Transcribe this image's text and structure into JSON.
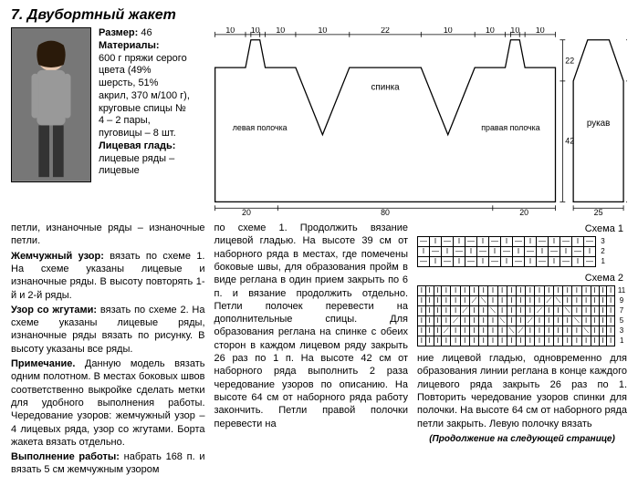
{
  "title": "7. Двубортный жакет",
  "materials": {
    "size_label": "Размер:",
    "size_val": "46",
    "mat_label": "Материалы:",
    "mat_text": "600 г пряжи серого цвета (49% шерсть, 51% акрил, 370 м/100 г), круговые спицы № 4 – 2 пары, пуговицы – 8 шт.",
    "lits_label": "Лицевая гладь:",
    "lits_text": "лицевые ряды – лицевые"
  },
  "diagram": {
    "top_dims": [
      "10",
      "2",
      "10",
      "2",
      "10",
      "22",
      "10",
      "2",
      "10"
    ],
    "back_label": "спинка",
    "left_label": "левая полочка",
    "right_label": "правая полочка",
    "sleeve_label": "рукав",
    "h1": "22",
    "h2": "42",
    "bottom_left": "20",
    "bottom_mid": "80",
    "bottom_right": "20",
    "sleeve_h1": "22",
    "sleeve_h2": "50",
    "sleeve_w": "25"
  },
  "col1": {
    "p1": "петли, изнаночные ряды – изнаночные петли.",
    "p2b": "Жемчужный узор:",
    "p2": " вязать по схеме 1. На схеме указаны лицевые и изнаночные ряды. В высоту повторять 1-й и 2-й ряды.",
    "p3b": "Узор со жгутами:",
    "p3": " вязать по схеме 2. На схеме указаны лицевые ряды, изнаночные ряды вязать по рисунку. В высоту указаны все ряды.",
    "p4b": "Примечание.",
    "p4": " Данную модель вязать одним полотном. В местах боковых швов соответственно выкройке сделать метки для удобного выполнения работы. Чередование узоров: жемчужный узор – 4 лицевых ряда, узор со жгутами. Борта жакета вязать отдельно.",
    "p5b": "Выполнение работы:",
    "p5": " набрать 168 п. и вязать 5 см жемчужным узором"
  },
  "col2": {
    "p1": "по схеме 1. Продолжить вязание лицевой гладью. На высоте 39 см от наборного ряда в местах, где помечены боковые швы, для образования прой­м в виде реглана в один прием закрыть по 6 п. и вязание продолжить отдельно. Петли полочек перевести на дополнительные спицы. Для образования реглана на спинке с обеих сторон в каждом лицевом ряду закрыть 26 раз по 1 п. На высоте 42 см от наборного ряда выполнить 2 раза чередование узоров по описанию. На высоте 64 см от наборного ряда работу закончить. Петли правой полочки перевести на"
  },
  "col3": {
    "p1": "ние лицевой гладью, одновременно для образования линии реглана в конце каждого лицевого ряда закрыть 26 раз по 1. Повторить чередование узоров спинки для полочки. На высоте 64 см от наборного ряда петли закрыть. Левую полочку вязать"
  },
  "schema1_label": "Схема 1",
  "schema2_label": "Схема 2",
  "schema1": {
    "rows": [
      {
        "n": "3",
        "cells": [
          "—",
          "I",
          "—",
          "I",
          "—",
          "I",
          "—",
          "I",
          "—",
          "I",
          "—",
          "I",
          "—",
          "I",
          "—"
        ]
      },
      {
        "n": "2",
        "cells": [
          "I",
          "—",
          "I",
          "—",
          "I",
          "—",
          "I",
          "—",
          "I",
          "—",
          "I",
          "—",
          "I",
          "—",
          "I"
        ]
      },
      {
        "n": "1",
        "cells": [
          "—",
          "I",
          "—",
          "I",
          "—",
          "I",
          "—",
          "I",
          "—",
          "I",
          "—",
          "I",
          "—",
          "I",
          "—"
        ]
      }
    ]
  },
  "schema2": {
    "rows": [
      {
        "n": "11",
        "cells": [
          "I",
          "I",
          "I",
          "I",
          "I",
          "I",
          "I",
          "I",
          "I",
          "I",
          "I",
          "I",
          "I",
          "I",
          "I",
          "I",
          "I",
          "I",
          "I",
          "I",
          "I",
          "I"
        ]
      },
      {
        "n": "9",
        "cells": [
          "I",
          "I",
          "I",
          "I",
          "I",
          "I",
          "⟋",
          "⟍",
          "I",
          "I",
          "I",
          "I",
          "I",
          "I",
          "⟋",
          "⟍",
          "I",
          "I",
          "I",
          "I",
          "I",
          "I"
        ]
      },
      {
        "n": "7",
        "cells": [
          "I",
          "I",
          "I",
          "I",
          "I",
          "⟋",
          "I",
          "I",
          "⟍",
          "I",
          "I",
          "I",
          "I",
          "⟋",
          "I",
          "I",
          "⟍",
          "I",
          "I",
          "I",
          "I",
          "I"
        ]
      },
      {
        "n": "5",
        "cells": [
          "I",
          "I",
          "I",
          "I",
          "⟋",
          "I",
          "I",
          "I",
          "I",
          "⟍",
          "I",
          "I",
          "⟋",
          "I",
          "I",
          "I",
          "I",
          "⟍",
          "I",
          "I",
          "I",
          "I"
        ]
      },
      {
        "n": "3",
        "cells": [
          "I",
          "I",
          "I",
          "⟋",
          "I",
          "I",
          "I",
          "I",
          "I",
          "I",
          "⟍",
          "⟋",
          "I",
          "I",
          "I",
          "I",
          "I",
          "I",
          "⟍",
          "I",
          "I",
          "I"
        ]
      },
      {
        "n": "1",
        "cells": [
          "I",
          "I",
          "I",
          "I",
          "I",
          "I",
          "I",
          "I",
          "I",
          "I",
          "I",
          "I",
          "I",
          "I",
          "I",
          "I",
          "I",
          "I",
          "I",
          "I",
          "I",
          "I"
        ]
      }
    ]
  },
  "continuation": "(Продолжение на следующей странице)"
}
